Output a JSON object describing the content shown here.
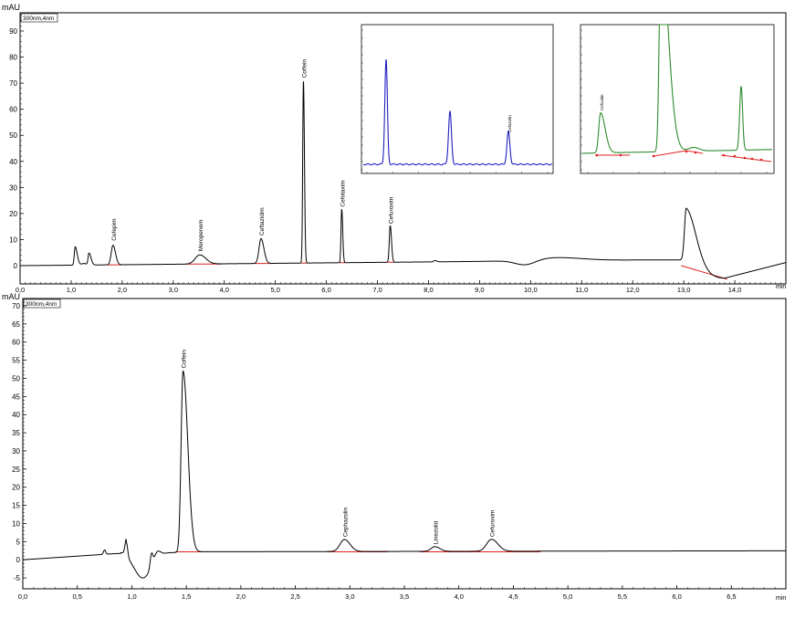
{
  "chart_data": [
    {
      "type": "line",
      "panel": "top",
      "title": "",
      "ylabel": "mAU",
      "xlabel": "min",
      "detector_label": "300nm,4nm",
      "xlim": [
        0,
        15
      ],
      "ylim": [
        -7,
        97
      ],
      "xticks": [
        0,
        1,
        2,
        3,
        4,
        5,
        6,
        7,
        8,
        9,
        10,
        11,
        12,
        13,
        14
      ],
      "xtick_labels": [
        "0,0",
        "1,0",
        "2,0",
        "3,0",
        "4,0",
        "5,0",
        "6,0",
        "7,0",
        "8,0",
        "9,0",
        "10,0",
        "11,0",
        "12,0",
        "13,0",
        "14,0"
      ],
      "yticks": [
        0,
        10,
        20,
        30,
        40,
        50,
        60,
        70,
        80,
        90
      ],
      "ytick_labels": [
        "0",
        "10",
        "20",
        "30",
        "40",
        "50",
        "60",
        "70",
        "80",
        "90"
      ],
      "peaks": [
        {
          "name": "Cefepim",
          "x": 1.82,
          "y": 8.5
        },
        {
          "name": "Meropenem",
          "x": 3.52,
          "y": 4.5
        },
        {
          "name": "Ceftazidim",
          "x": 4.72,
          "y": 10.5
        },
        {
          "name": "Coffein",
          "x": 5.55,
          "y": 71.0
        },
        {
          "name": "Cefotaxim",
          "x": 6.3,
          "y": 21.5
        },
        {
          "name": "Cefuroxim",
          "x": 7.25,
          "y": 15.0
        }
      ],
      "unlabeled_peaks": [
        {
          "x": 1.08,
          "y": 8.0
        },
        {
          "x": 1.35,
          "y": 5.5
        },
        {
          "x": 8.12,
          "y": 1.5
        },
        {
          "x": 13.05,
          "y": 22.5
        }
      ]
    },
    {
      "type": "line",
      "panel": "bottom",
      "title": "",
      "ylabel": "mAU",
      "xlabel": "min",
      "detector_label": "300nm,4nm",
      "xlim": [
        0,
        7
      ],
      "ylim": [
        -8,
        72
      ],
      "xticks": [
        0,
        0.5,
        1,
        1.5,
        2,
        2.5,
        3,
        3.5,
        4,
        4.5,
        5,
        5.5,
        6,
        6.5
      ],
      "xtick_labels": [
        "0,0",
        "0,5",
        "1,0",
        "1,5",
        "2,0",
        "2,5",
        "3,0",
        "3,5",
        "4,0",
        "4,5",
        "5,0",
        "5,5",
        "6,0",
        "6,5"
      ],
      "yticks": [
        -5,
        0,
        5,
        10,
        15,
        20,
        25,
        30,
        35,
        40,
        45,
        50,
        55,
        60,
        65,
        70
      ],
      "ytick_labels": [
        "-5",
        "0",
        "5",
        "10",
        "15",
        "20",
        "25",
        "30",
        "35",
        "40",
        "45",
        "50",
        "55",
        "60",
        "65",
        "70"
      ],
      "peaks": [
        {
          "name": "Coffein",
          "x": 1.47,
          "y": 52.0
        },
        {
          "name": "Cephazolin",
          "x": 2.95,
          "y": 5.5
        },
        {
          "name": "Linezolid",
          "x": 3.78,
          "y": 3.5
        },
        {
          "name": "Cefuroxim",
          "x": 4.3,
          "y": 5.5
        }
      ]
    }
  ],
  "insets": {
    "left": {
      "series_color": "#1f1fbf",
      "peak_label": "Cefazolin"
    },
    "right": {
      "series_color": "#2e8b2e",
      "peak_label": "Cefoxitin"
    }
  }
}
